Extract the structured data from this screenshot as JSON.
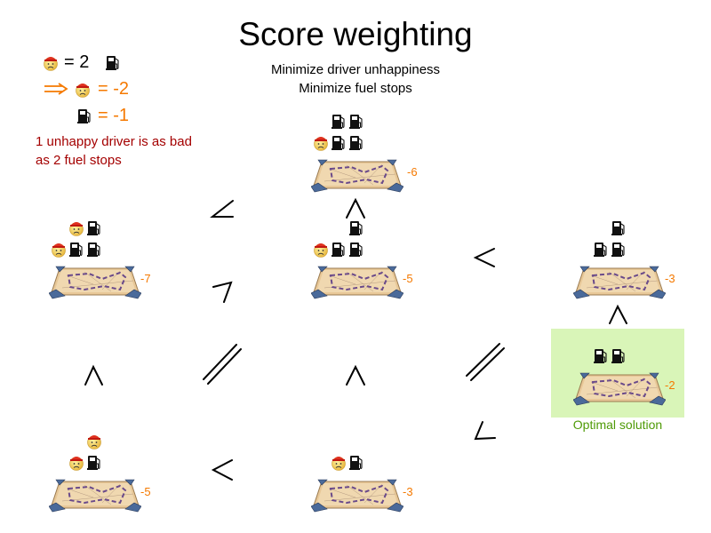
{
  "title": "Score weighting",
  "subtitle_lines": [
    "Minimize driver unhappiness",
    "Minimize fuel stops"
  ],
  "legend": {
    "weight_line": "= 2",
    "driver_score": "= -2",
    "fuel_score": "= -1",
    "note_lines": [
      "1 unhappy driver is as bad",
      "as 2 fuel stops"
    ]
  },
  "colors": {
    "accent": "#f57900",
    "note": "#a40000",
    "optimal_bg": "#d9f5b8",
    "optimal_text": "#4e9a06"
  },
  "icons": {
    "driver": "unhappy-driver-icon",
    "fuel": "fuel-pump-icon",
    "solution": "map-route-icon"
  },
  "solutions": [
    {
      "id": "a",
      "rows": [
        [
          "fuel",
          "fuel"
        ],
        [
          "driver",
          "fuel",
          "fuel"
        ]
      ],
      "score": "-6"
    },
    {
      "id": "b",
      "rows": [
        [
          "driver",
          "fuel"
        ],
        [
          "driver",
          "fuel",
          "fuel"
        ]
      ],
      "score": "-7"
    },
    {
      "id": "c",
      "rows": [
        [
          "fuel"
        ],
        [
          "driver",
          "fuel",
          "fuel"
        ]
      ],
      "score": "-5"
    },
    {
      "id": "d",
      "rows": [
        [
          "fuel"
        ],
        [
          "fuel",
          "fuel"
        ]
      ],
      "score": "-3"
    },
    {
      "id": "e",
      "rows": [
        [
          "fuel",
          "fuel"
        ]
      ],
      "score": "-2"
    },
    {
      "id": "f",
      "rows": [
        [
          "driver"
        ],
        [
          "driver",
          "fuel"
        ]
      ],
      "score": "-5"
    },
    {
      "id": "g",
      "rows": [
        [
          "driver",
          "fuel"
        ]
      ],
      "score": "-3"
    }
  ],
  "optimal_label": "Optimal solution"
}
